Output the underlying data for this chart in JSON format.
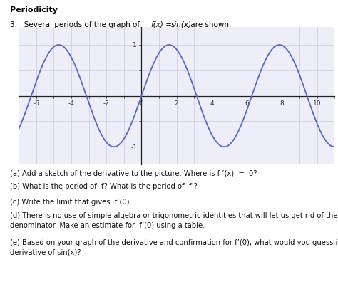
{
  "title": "Periodicity",
  "bg_color": "#ffffff",
  "graph_bg_color": "#eeeef8",
  "grid_color": "#c0c0d8",
  "axis_color": "#222222",
  "sine_color": "#5566cc",
  "xmin": -7,
  "xmax": 11,
  "ymin": -1.35,
  "ymax": 1.35,
  "xticks": [
    -6,
    -4,
    -2,
    0,
    2,
    4,
    6,
    8,
    10
  ],
  "yticks": [
    -1,
    1
  ],
  "part_a": "(a) Add a sketch of the derivative to the picture. Where is f ’(x)  =  0?",
  "part_b": "(b) What is the period of  f? What is the period of  f’?",
  "part_c": "(c) Write the limit that gives  f’(0).",
  "part_d1": "(d) There is no use of simple algebra or trigonometric identities that will let us get rid of the zero in the",
  "part_d2": "denominator. Make an estimate for  f’(0) using a table.",
  "part_e1": "(e) Based on your graph of the derivative and confirmation for f’(0), what would you guess is the",
  "part_e2": "derivative of sin(x)?"
}
